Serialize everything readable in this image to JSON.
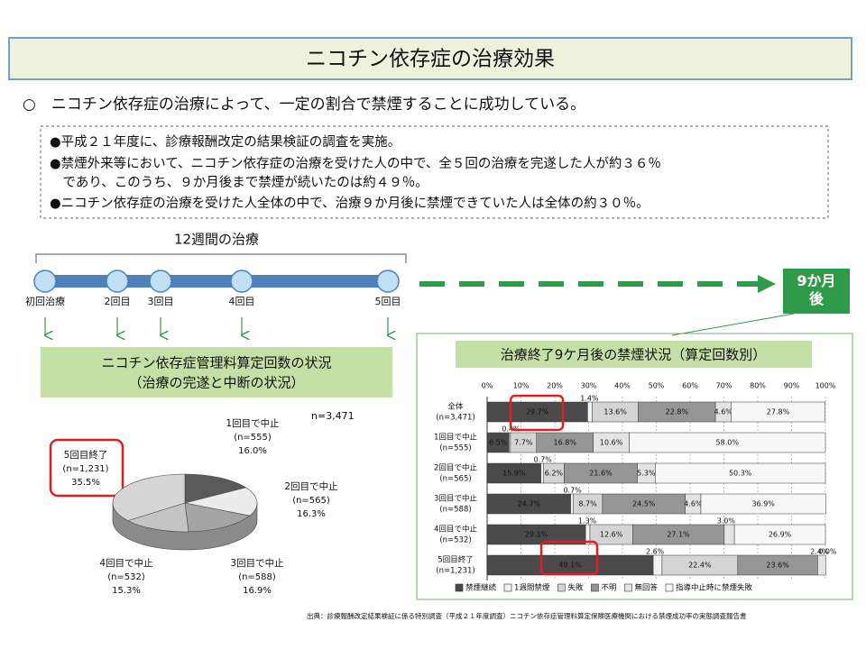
{
  "header": {
    "title": "ニコチン依存症の治療効果"
  },
  "lead": "○　ニコチン依存症の治療によって、一定の割合で禁煙することに成功している。",
  "summary_lines": [
    "●平成２１年度に、診療報酬改定の結果検証の調査を実施。",
    "●禁煙外来等において、ニコチン依存症の治療を受けた人の中で、全５回の治療を完遂した人が約３６％",
    "　であり、このうち、９か月後まで禁煙が続いたのは約４９％。",
    "●ニコチン依存症の治療を受けた人全体の中で、治療９か月後に禁煙できていた人は全体の約３０％。"
  ],
  "timeline": {
    "label": "12週間の治療",
    "steps": [
      "初回治療",
      "2回目",
      "3回目",
      "4回目",
      "5回目"
    ],
    "end": "9か月後"
  },
  "chart_data": [
    {
      "type": "pie",
      "title": "ニコチン依存症管理料算定回数の状況",
      "subtitle": "（治療の完遂と中断の状況）",
      "note": "n=3,471",
      "labels": [
        "1回目で中止",
        "2回目で中止",
        "3回目で中止",
        "4回目で中止",
        "5回目終了"
      ],
      "n_labels": [
        "(n=555)",
        "(n=565)",
        "(n=588)",
        "(n=532)",
        "(n=1,231)"
      ],
      "values": [
        16.0,
        16.3,
        16.9,
        15.3,
        35.5
      ],
      "value_labels": [
        "16.0%",
        "16.3%",
        "16.9%",
        "15.3%",
        "35.5%"
      ],
      "colors": [
        "#5a5a5a",
        "#ececec",
        "#a4a4a4",
        "#c4c4c4",
        "#d6d6d6"
      ]
    },
    {
      "type": "stacked-bar",
      "title": "治療終了9ケ月後の禁煙状況（算定回数別）",
      "categories": [
        "全体",
        "1回目で中止",
        "2回目で中止",
        "3回目で中止",
        "4回目で中止",
        "5回目終了"
      ],
      "category_notes": [
        "(n=3,471)",
        "(n=555)",
        "(n=565)",
        "(n=588)",
        "(n=532)",
        "(n=1,231)"
      ],
      "xlim": [
        0,
        100
      ],
      "xticks": [
        {
          "value": 0,
          "label": "0%"
        },
        {
          "value": 10,
          "label": "10%"
        },
        {
          "value": 20,
          "label": "20%"
        },
        {
          "value": 30,
          "label": "30%"
        },
        {
          "value": 40,
          "label": "40%"
        },
        {
          "value": 50,
          "label": "50%"
        },
        {
          "value": 60,
          "label": "60%"
        },
        {
          "value": 70,
          "label": "70%"
        },
        {
          "value": 80,
          "label": "80%"
        },
        {
          "value": 90,
          "label": "90%"
        },
        {
          "value": 100,
          "label": "100%"
        }
      ],
      "series": [
        {
          "name": "禁煙継続",
          "color": "#4a4a4a",
          "values": [
            29.7,
            6.5,
            15.9,
            24.7,
            29.1,
            49.1
          ],
          "value_labels": [
            "29.7%",
            "6.5%",
            "15.9%",
            "24.7%",
            "29.1%",
            "49.1%"
          ]
        },
        {
          "name": "1週間禁煙",
          "color": "#f2f2f2",
          "values": [
            1.4,
            0.4,
            0.7,
            0.7,
            1.3,
            2.6
          ],
          "value_labels": [
            "1.4%",
            "0.4%",
            "0.7%",
            "0.7%",
            "1.3%",
            "2.6%"
          ]
        },
        {
          "name": "失敗",
          "color": "#d4d4d4",
          "values": [
            13.6,
            7.7,
            6.2,
            8.7,
            12.6,
            22.4
          ],
          "value_labels": [
            "13.6%",
            "7.7%",
            "6.2%",
            "8.7%",
            "12.6%",
            "22.4%"
          ]
        },
        {
          "name": "不明",
          "color": "#969696",
          "values": [
            22.8,
            16.8,
            21.6,
            24.5,
            27.1,
            23.6
          ],
          "value_labels": [
            "22.8%",
            "16.8%",
            "21.6%",
            "24.5%",
            "27.1%",
            "23.6%"
          ]
        },
        {
          "name": "無回答",
          "color": "#e4e4e4",
          "values": [
            4.6,
            10.6,
            5.3,
            4.6,
            3.0,
            2.4
          ],
          "value_labels": [
            "4.6%",
            "10.6%",
            "5.3%",
            "4.6%",
            "3.0%",
            "2.4%"
          ]
        },
        {
          "name": "指導中止時に禁煙失敗",
          "color": "#f7f7f7",
          "values": [
            27.8,
            58.0,
            50.3,
            36.9,
            26.9,
            0.0
          ],
          "value_labels": [
            "27.8%",
            "58.0%",
            "50.3%",
            "36.9%",
            "26.9%",
            "0.0%"
          ]
        }
      ]
    }
  ],
  "source": "出典：診療報酬改定結果検証に係る特別調査（平成２１年度調査）ニコチン依存症管理料算定保険医療機関における禁煙成功率の実態調査報告書"
}
